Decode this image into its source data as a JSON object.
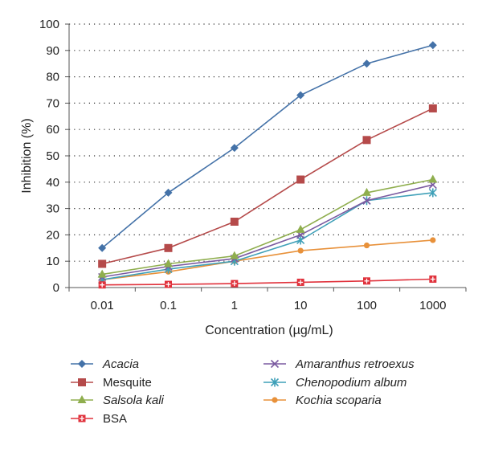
{
  "chart_data": {
    "type": "line",
    "xlabel": "Concentration (µg/mL)",
    "ylabel": "Inhibition (%)",
    "ylim": [
      0,
      100
    ],
    "yticks": [
      "0",
      "10",
      "20",
      "30",
      "40",
      "50",
      "60",
      "70",
      "80",
      "90",
      "100"
    ],
    "categories": [
      "0.01",
      "0.1",
      "1",
      "10",
      "100",
      "1000"
    ],
    "grid": "horizontal dotted",
    "legend_placement": "bottom",
    "series": [
      {
        "name": "Acacia",
        "italic": true,
        "color": "#4472a8",
        "marker": "diamond",
        "values": [
          15,
          36,
          53,
          73,
          85,
          92
        ]
      },
      {
        "name": "Mesquite",
        "italic": false,
        "color": "#b54a4a",
        "marker": "square",
        "values": [
          9,
          15,
          25,
          41,
          56,
          68
        ]
      },
      {
        "name": "Salsola kali",
        "italic": true,
        "color": "#8fae4e",
        "marker": "triangle",
        "values": [
          5,
          9,
          12,
          22,
          36,
          41
        ]
      },
      {
        "name": "BSA",
        "italic": false,
        "color": "#e0323c",
        "marker": "square-plus",
        "values": [
          1,
          1.2,
          1.5,
          2,
          2.5,
          3.2
        ]
      },
      {
        "name": "Amaranthus retroexus",
        "italic": true,
        "color": "#7a5aa0",
        "marker": "x",
        "values": [
          4,
          8,
          11,
          20,
          33,
          39
        ]
      },
      {
        "name": "Chenopodium album",
        "italic": true,
        "color": "#3fa0b8",
        "marker": "star",
        "values": [
          3,
          7,
          10,
          18,
          33,
          36
        ]
      },
      {
        "name": "Kochia scoparia",
        "italic": true,
        "color": "#e8913a",
        "marker": "circle",
        "values": [
          3,
          6,
          10,
          14,
          16,
          18
        ]
      }
    ]
  }
}
